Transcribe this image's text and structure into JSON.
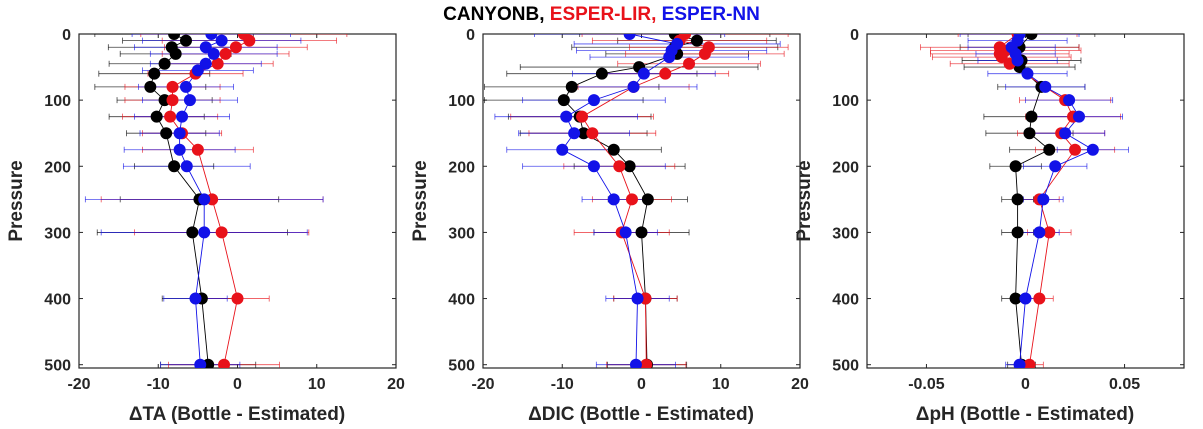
{
  "title": {
    "parts": [
      {
        "text": "CANYONB, ",
        "color": "#000000"
      },
      {
        "text": "ESPER-LIR, ",
        "color": "#e8121a"
      },
      {
        "text": "ESPER-NN",
        "color": "#1212e8"
      }
    ]
  },
  "chart_data": [
    {
      "type": "scatter",
      "xlabel": "ΔTA (Bottle - Estimated)",
      "ylabel": "Pressure",
      "xlim": [
        -20,
        20
      ],
      "ylim": [
        0,
        505
      ],
      "y_reversed": true,
      "xticks": [
        -20,
        -10,
        0,
        10,
        20
      ],
      "xtick_labels": [
        "-20",
        "-10",
        "0",
        "10",
        "20"
      ],
      "yticks": [
        0,
        100,
        200,
        300,
        400,
        500
      ],
      "ytick_labels": [
        "0",
        "100",
        "200",
        "300",
        "400",
        "500"
      ],
      "series": [
        {
          "name": "CANYONB",
          "color": "#000000",
          "points": [
            [
              -8,
              0
            ],
            [
              -6.5,
              10
            ],
            [
              -8.3,
              20
            ],
            [
              -7.8,
              30
            ],
            [
              -9.2,
              45
            ],
            [
              -10.5,
              60
            ],
            [
              -11,
              80
            ],
            [
              -9.2,
              100
            ],
            [
              -10.2,
              125
            ],
            [
              -9,
              150
            ],
            [
              -8,
              200
            ],
            [
              -4.8,
              250
            ],
            [
              -5.7,
              300
            ],
            [
              -4.5,
              400
            ],
            [
              -3.7,
              500
            ]
          ],
          "err": [
            10,
            8,
            8,
            7,
            7,
            7,
            7,
            6,
            6,
            5,
            5,
            10,
            12,
            5,
            6
          ]
        },
        {
          "name": "ESPER-LIR",
          "color": "#e8121a",
          "points": [
            [
              0.8,
              0
            ],
            [
              1.5,
              10
            ],
            [
              -0.2,
              20
            ],
            [
              -1.5,
              30
            ],
            [
              -2.5,
              45
            ],
            [
              -5.3,
              60
            ],
            [
              -8.2,
              80
            ],
            [
              -8.2,
              100
            ],
            [
              -8.5,
              125
            ],
            [
              -7,
              150
            ],
            [
              -5,
              175
            ],
            [
              -3.2,
              250
            ],
            [
              -2,
              300
            ],
            [
              0,
              400
            ],
            [
              -1.7,
              500
            ]
          ],
          "err": [
            13,
            11,
            9,
            8,
            7,
            6,
            6,
            6,
            6,
            5,
            7,
            14,
            11,
            4,
            7
          ]
        },
        {
          "name": "ESPER-NN",
          "color": "#1212e8",
          "points": [
            [
              -3.3,
              0
            ],
            [
              -2,
              10
            ],
            [
              -4,
              20
            ],
            [
              -3,
              30
            ],
            [
              -4,
              45
            ],
            [
              -5,
              55
            ],
            [
              -6.5,
              80
            ],
            [
              -6,
              100
            ],
            [
              -7,
              125
            ],
            [
              -7.3,
              150
            ],
            [
              -7.3,
              175
            ],
            [
              -6.4,
              200
            ],
            [
              -4.2,
              250
            ],
            [
              -4.2,
              300
            ],
            [
              -5.3,
              400
            ],
            [
              -4.7,
              500
            ]
          ],
          "err": [
            10,
            10,
            9,
            8,
            7,
            7,
            6,
            6,
            6,
            5,
            7,
            8,
            15,
            13,
            4,
            5
          ]
        }
      ]
    },
    {
      "type": "scatter",
      "xlabel": "ΔDIC (Bottle - Estimated)",
      "ylabel": "Pressure",
      "xlim": [
        -20,
        20
      ],
      "ylim": [
        0,
        505
      ],
      "y_reversed": true,
      "xticks": [
        -20,
        -10,
        0,
        10,
        20
      ],
      "xtick_labels": [
        "-20",
        "-10",
        "0",
        "10",
        "20"
      ],
      "yticks": [
        0,
        100,
        200,
        300,
        400,
        500
      ],
      "ytick_labels": [
        "0",
        "100",
        "200",
        "300",
        "400",
        "500"
      ],
      "series": [
        {
          "name": "CANYONB",
          "color": "#000000",
          "points": [
            [
              4.2,
              0
            ],
            [
              7,
              10
            ],
            [
              4.2,
              20
            ],
            [
              4.5,
              30
            ],
            [
              -0.3,
              50
            ],
            [
              -5,
              60
            ],
            [
              -8.8,
              80
            ],
            [
              -9.8,
              100
            ],
            [
              -7.8,
              125
            ],
            [
              -7.3,
              150
            ],
            [
              -3.5,
              175
            ],
            [
              -1.5,
              200
            ],
            [
              0.8,
              250
            ],
            [
              0,
              300
            ],
            [
              0.5,
              400
            ],
            [
              0.7,
              500
            ]
          ],
          "err": [
            12,
            10,
            13,
            9,
            15,
            12,
            11,
            10,
            9,
            8,
            6,
            7,
            5,
            6,
            4,
            5
          ]
        },
        {
          "name": "ESPER-LIR",
          "color": "#e8121a",
          "points": [
            [
              5.5,
              0
            ],
            [
              4.8,
              10
            ],
            [
              8.5,
              20
            ],
            [
              8,
              30
            ],
            [
              6,
              45
            ],
            [
              3,
              60
            ],
            [
              -1,
              80
            ],
            [
              -7.5,
              125
            ],
            [
              -6.2,
              150
            ],
            [
              -2.8,
              200
            ],
            [
              -1.2,
              250
            ],
            [
              -2.5,
              300
            ],
            [
              0.5,
              400
            ],
            [
              0.6,
              500
            ]
          ],
          "err": [
            13,
            11,
            10,
            10,
            9,
            8,
            7,
            9,
            8,
            7,
            5,
            6,
            4,
            5
          ]
        },
        {
          "name": "ESPER-NN",
          "color": "#1212e8",
          "points": [
            [
              -1.5,
              0
            ],
            [
              4.5,
              15
            ],
            [
              3.8,
              25
            ],
            [
              3.5,
              35
            ],
            [
              0.3,
              60
            ],
            [
              -1,
              80
            ],
            [
              -6,
              100
            ],
            [
              -9.5,
              125
            ],
            [
              -8.5,
              150
            ],
            [
              -10,
              175
            ],
            [
              -6,
              200
            ],
            [
              -3.5,
              250
            ],
            [
              -2,
              300
            ],
            [
              -0.5,
              400
            ],
            [
              -0.7,
              500
            ]
          ],
          "err": [
            12,
            13,
            12,
            10,
            9,
            8,
            9,
            9,
            7,
            7,
            9,
            4,
            4,
            4,
            5
          ]
        }
      ]
    },
    {
      "type": "scatter",
      "xlabel": "ΔpH (Bottle - Estimated)",
      "ylabel": "Pressure",
      "xlim": [
        -0.08,
        0.08
      ],
      "ylim": [
        0,
        505
      ],
      "y_reversed": true,
      "xticks": [
        -0.05,
        0,
        0.05
      ],
      "xtick_labels": [
        "-0.05",
        "0",
        "0.05"
      ],
      "yticks": [
        0,
        100,
        200,
        300,
        400,
        500
      ],
      "ytick_labels": [
        "0",
        "100",
        "200",
        "300",
        "400",
        "500"
      ],
      "series": [
        {
          "name": "CANYONB",
          "color": "#000000",
          "points": [
            [
              0.003,
              0
            ],
            [
              -0.003,
              20
            ],
            [
              -0.002,
              40
            ],
            [
              -0.003,
              50
            ],
            [
              0.008,
              80
            ],
            [
              0.003,
              125
            ],
            [
              0.002,
              150
            ],
            [
              0.012,
              175
            ],
            [
              -0.005,
              200
            ],
            [
              -0.004,
              250
            ],
            [
              -0.004,
              300
            ],
            [
              -0.005,
              400
            ],
            [
              -0.002,
              500
            ]
          ],
          "err": [
            0.032,
            0.03,
            0.03,
            0.028,
            0.022,
            0.024,
            0.022,
            0.02,
            0.013,
            0.008,
            0.008,
            0.007,
            0.007
          ]
        },
        {
          "name": "ESPER-LIR",
          "color": "#e8121a",
          "points": [
            [
              -0.004,
              0
            ],
            [
              -0.013,
              20
            ],
            [
              -0.01,
              25
            ],
            [
              -0.013,
              30
            ],
            [
              -0.012,
              35
            ],
            [
              -0.008,
              45
            ],
            [
              0.02,
              100
            ],
            [
              0.024,
              125
            ],
            [
              0.018,
              150
            ],
            [
              0.025,
              175
            ],
            [
              0.007,
              250
            ],
            [
              0.012,
              300
            ],
            [
              0.007,
              400
            ],
            [
              0.002,
              500
            ]
          ],
          "err": [
            0.03,
            0.04,
            0.038,
            0.035,
            0.035,
            0.03,
            0.023,
            0.024,
            0.022,
            0.02,
            0.01,
            0.011,
            0.007,
            0.007
          ]
        },
        {
          "name": "ESPER-NN",
          "color": "#1212e8",
          "points": [
            [
              -0.003,
              0
            ],
            [
              -0.004,
              10
            ],
            [
              -0.007,
              20
            ],
            [
              -0.005,
              30
            ],
            [
              -0.004,
              40
            ],
            [
              0.001,
              60
            ],
            [
              0.01,
              80
            ],
            [
              0.022,
              100
            ],
            [
              0.027,
              125
            ],
            [
              0.02,
              150
            ],
            [
              0.034,
              175
            ],
            [
              0.015,
              200
            ],
            [
              0.009,
              250
            ],
            [
              0.007,
              300
            ],
            [
              0,
              400
            ],
            [
              -0.003,
              500
            ]
          ],
          "err": [
            0.03,
            0.025,
            0.022,
            0.02,
            0.02,
            0.02,
            0.02,
            0.022,
            0.022,
            0.02,
            0.018,
            0.016,
            0.01,
            0.01,
            0.007,
            0.007
          ]
        }
      ]
    }
  ]
}
